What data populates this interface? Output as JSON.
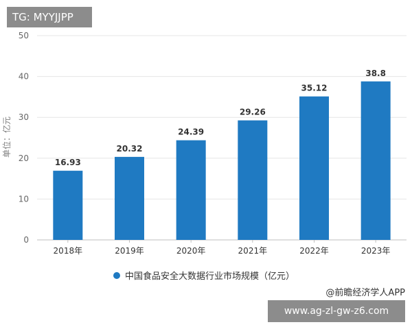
{
  "overlay": {
    "tag": "TG: MYYJJPP",
    "url": "www.ag-zl-gw-z6.com",
    "credit": "@前瞻经济学人APP"
  },
  "chart_data": {
    "type": "bar",
    "title": "",
    "xlabel": "",
    "ylabel": "单位：亿元",
    "ylim": [
      0,
      50
    ],
    "yticks": [
      0,
      10,
      20,
      30,
      40,
      50
    ],
    "grid": true,
    "legend_position": "bottom",
    "categories": [
      "2018年",
      "2019年",
      "2020年",
      "2021年",
      "2022年",
      "2023年"
    ],
    "series": [
      {
        "name": "中国食品安全大数据行业市场规模（亿元）",
        "color": "#1f7ac2",
        "values": [
          16.93,
          20.32,
          24.39,
          29.26,
          35.12,
          38.8
        ],
        "labels": [
          "16.93",
          "20.32",
          "24.39",
          "29.26",
          "35.12",
          "38.8"
        ]
      }
    ]
  }
}
